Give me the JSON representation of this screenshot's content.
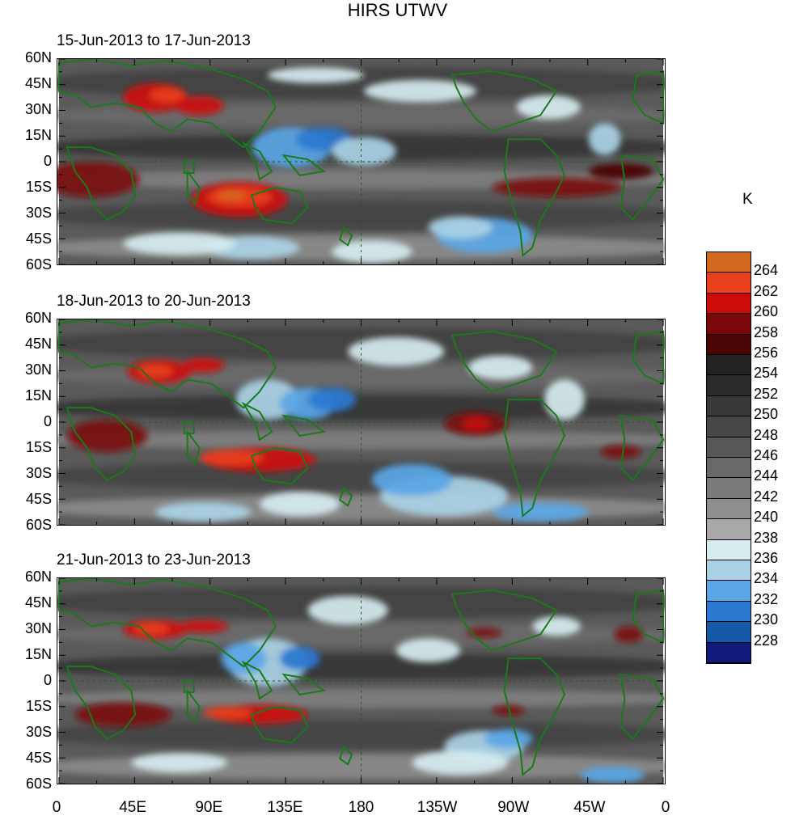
{
  "title": "HIRS UTWV",
  "panels": [
    {
      "id": "p1",
      "label": "15-Jun-2013 to 17-Jun-2013"
    },
    {
      "id": "p2",
      "label": "18-Jun-2013 to 20-Jun-2013"
    },
    {
      "id": "p3",
      "label": "21-Jun-2013 to 23-Jun-2013"
    }
  ],
  "lat_labels": [
    "60N",
    "45N",
    "30N",
    "15N",
    "0",
    "15S",
    "30S",
    "45S",
    "60S"
  ],
  "lon_labels": [
    "0",
    "45E",
    "90E",
    "135E",
    "180",
    "135W",
    "90W",
    "45W",
    "0"
  ],
  "colorbar": {
    "unit": "K",
    "levels": [
      "264",
      "262",
      "260",
      "258",
      "256",
      "254",
      "252",
      "250",
      "248",
      "246",
      "244",
      "242",
      "240",
      "238",
      "236",
      "234",
      "232",
      "230",
      "228"
    ],
    "colors": [
      "#d2691e",
      "#e8401c",
      "#cc0a0a",
      "#7a0808",
      "#4a0606",
      "#222222",
      "#2c2c2c",
      "#383838",
      "#474747",
      "#575757",
      "#686868",
      "#7a7a7a",
      "#8e8e8e",
      "#a8a8a8",
      "#d6ecef",
      "#a9d2e6",
      "#5aa6e6",
      "#2a78d0",
      "#145aa6",
      "#101a78"
    ]
  },
  "colors": {
    "coastline": "#1a7a1a",
    "background": "#5a5a5a"
  }
}
